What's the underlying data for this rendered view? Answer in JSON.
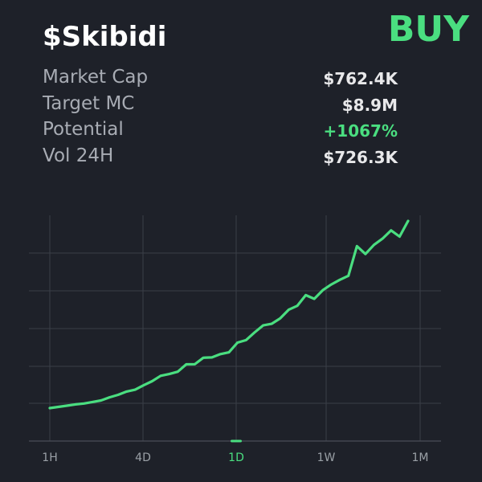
{
  "header": {
    "token_name": "$Skibidi",
    "action_label": "BUY"
  },
  "stats": [
    {
      "label": "Market Cap",
      "value": "$762.4K",
      "positive": false
    },
    {
      "label": "Target MC",
      "value": "$8.9M",
      "positive": false
    },
    {
      "label": "Potential",
      "value": "+1067%",
      "positive": true
    },
    {
      "label": "Vol 24H",
      "value": "$726.3K",
      "positive": false
    }
  ],
  "colors": {
    "background": "#1e2129",
    "accent": "#4ade80",
    "grid": "#3a3e47"
  },
  "chart_data": {
    "type": "line",
    "x_tick_labels": [
      "1H",
      "4D",
      "1D",
      "1W",
      "1M"
    ],
    "selected_timeframe": "1D",
    "y_tick_labels": [],
    "grid": true,
    "series": [
      {
        "values": [
          0.7,
          2.2,
          3.8,
          5.4,
          6.6,
          8.5,
          10.5,
          14.5,
          17.6,
          21.8,
          24.2,
          29.9,
          35.1,
          42.0,
          44.2,
          47.2,
          56.7,
          56.8,
          65.1,
          65.5,
          69.7,
          71.9,
          84.4,
          87.6,
          97.4,
          106.3,
          108.4,
          115.3,
          126.4,
          131.4,
          145.0,
          140.3,
          151.4,
          158.7,
          164.7,
          169.8,
          207.7,
          197.6,
          209.3,
          217.2,
          227.8,
          219.9,
          239.9
        ]
      }
    ]
  }
}
